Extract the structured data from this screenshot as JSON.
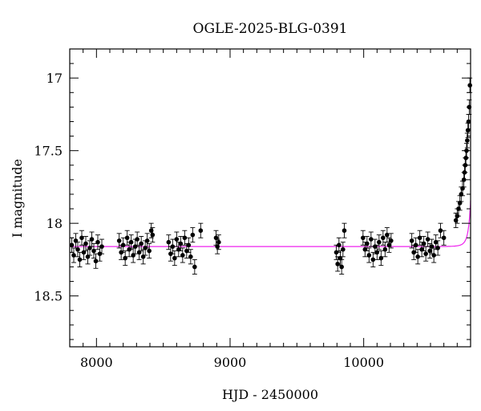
{
  "chart_data": {
    "type": "scatter",
    "title": "OGLE-2025-BLG-0391",
    "xlabel": "HJD - 2450000",
    "ylabel": "I magnitude",
    "xlim": [
      7800,
      10800
    ],
    "ylim": [
      18.85,
      16.8
    ],
    "y_inverted": true,
    "x_ticks": [
      8000,
      9000,
      10000
    ],
    "x_tick_labels": [
      "8000",
      "9000",
      "10000"
    ],
    "y_ticks": [
      17,
      17.5,
      18,
      18.5
    ],
    "y_tick_labels": [
      "17",
      "17.5",
      "18",
      "18.5"
    ],
    "grid": false,
    "legend": "none",
    "colors": {
      "data": "#000000",
      "model": "#ee22ee"
    },
    "series": [
      {
        "kind": "points_with_errorbars",
        "x": [
          7815,
          7830,
          7845,
          7860,
          7875,
          7890,
          7905,
          7920,
          7935,
          7950,
          7965,
          7980,
          7995,
          8010,
          8025,
          8040,
          8170,
          8185,
          8200,
          8215,
          8230,
          8245,
          8260,
          8275,
          8290,
          8305,
          8320,
          8335,
          8350,
          8365,
          8380,
          8395,
          8410,
          8420,
          8540,
          8555,
          8570,
          8585,
          8600,
          8615,
          8630,
          8645,
          8660,
          8675,
          8690,
          8705,
          8720,
          8735,
          8780,
          8895,
          8905,
          8915,
          9795,
          9805,
          9815,
          9825,
          9835,
          9845,
          9855,
          9995,
          10010,
          10025,
          10040,
          10055,
          10070,
          10085,
          10100,
          10115,
          10130,
          10145,
          10160,
          10175,
          10190,
          10205,
          10360,
          10375,
          10390,
          10405,
          10420,
          10435,
          10450,
          10465,
          10480,
          10495,
          10510,
          10525,
          10540,
          10555,
          10575,
          10600,
          10690,
          10700,
          10710,
          10720,
          10730,
          10740,
          10750,
          10755,
          10760,
          10765,
          10770,
          10775,
          10780,
          10785,
          10790,
          10795
        ],
        "y": [
          18.15,
          18.22,
          18.12,
          18.18,
          18.25,
          18.1,
          18.2,
          18.14,
          18.23,
          18.17,
          18.11,
          18.19,
          18.26,
          18.13,
          18.21,
          18.16,
          18.12,
          18.2,
          18.15,
          18.24,
          18.1,
          18.18,
          18.13,
          18.22,
          18.16,
          18.11,
          18.2,
          18.14,
          18.23,
          18.17,
          18.12,
          18.19,
          18.05,
          18.08,
          18.13,
          18.21,
          18.16,
          18.24,
          18.11,
          18.18,
          18.14,
          18.22,
          18.1,
          18.19,
          18.15,
          18.23,
          18.08,
          18.3,
          18.05,
          18.1,
          18.16,
          18.13,
          18.2,
          18.28,
          18.15,
          18.24,
          18.3,
          18.18,
          18.05,
          18.1,
          18.18,
          18.14,
          18.22,
          18.11,
          18.25,
          18.16,
          18.2,
          18.13,
          18.24,
          18.1,
          18.18,
          18.08,
          18.15,
          18.12,
          18.12,
          18.2,
          18.15,
          18.23,
          18.1,
          18.18,
          18.14,
          18.21,
          18.11,
          18.19,
          18.16,
          18.22,
          18.13,
          18.17,
          18.05,
          18.1,
          17.98,
          17.95,
          17.9,
          17.86,
          17.8,
          17.76,
          17.7,
          17.65,
          17.6,
          17.55,
          17.5,
          17.43,
          17.36,
          17.3,
          17.2,
          17.05
        ],
        "yerr": 0.05
      },
      {
        "kind": "model_curve",
        "baseline": 18.16,
        "t0": 10830,
        "tE": 30
      }
    ]
  }
}
